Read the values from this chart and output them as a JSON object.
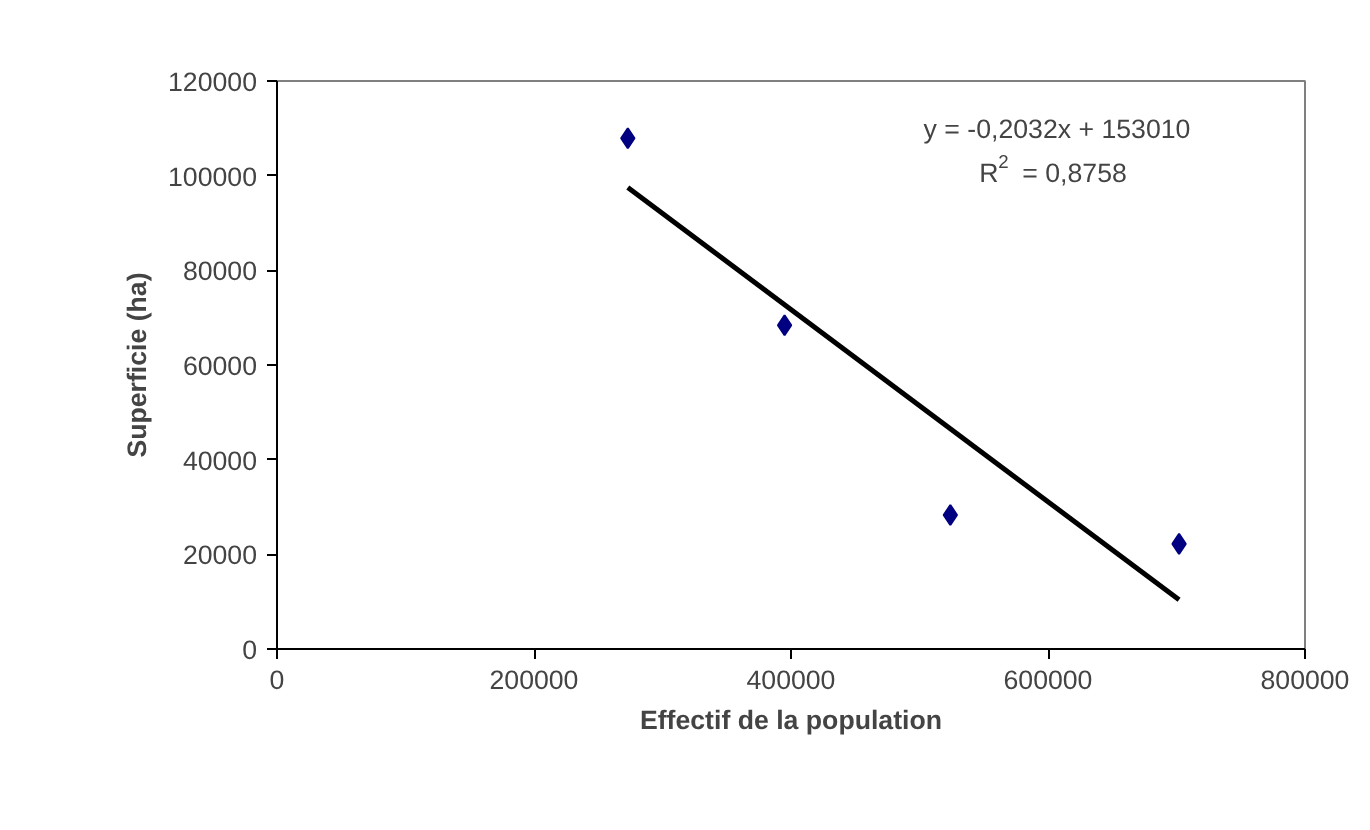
{
  "chart_data": {
    "type": "scatter",
    "xlabel": "Effectif de la population",
    "ylabel": "Superficie (ha)",
    "series": [
      {
        "color": "#000080",
        "marker": "diamond",
        "x": [
          273000,
          395000,
          524000,
          702000
        ],
        "values": [
          107900,
          68400,
          28300,
          22200
        ]
      },
      {
        "type": "line",
        "color": "#000000",
        "marker": "none",
        "line_style": "solid",
        "x": [
          273000,
          702000
        ],
        "values": [
          97500,
          10400
        ]
      }
    ],
    "annotations": [
      "y = -0,2032x + 153010",
      "R$^{2}$ = 0,8758"
    ],
    "xlim": [
      0,
      800000
    ],
    "ylim": [
      0,
      120000
    ],
    "xticks": [
      0,
      200000,
      400000,
      600000,
      800000
    ],
    "yticks": [
      0,
      20000,
      40000,
      60000,
      80000,
      100000,
      120000
    ],
    "grid": false
  }
}
